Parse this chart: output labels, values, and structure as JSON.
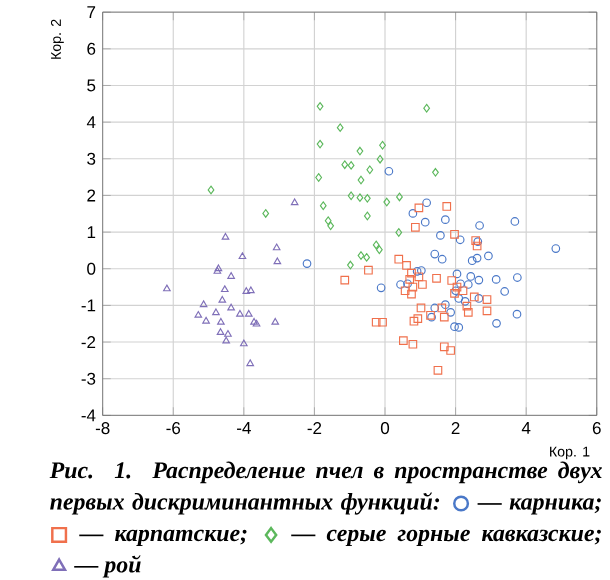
{
  "chart_data": {
    "type": "scatter",
    "xlabel": "Кор. 1",
    "ylabel": "Кор. 2",
    "xlim": [
      -8,
      6
    ],
    "ylim": [
      -4,
      7
    ],
    "xticks": [
      -8,
      -6,
      -4,
      -2,
      0,
      2,
      4,
      6
    ],
    "yticks": [
      -4,
      -3,
      -2,
      -1,
      0,
      1,
      2,
      3,
      4,
      5,
      6,
      7
    ],
    "grid": true,
    "legend": "bottom",
    "annotations": [
      "Рис. 1. Распределение пчел в пространстве двух первых дискриминантных функций:"
    ],
    "series": [
      {
        "name": "— карника;",
        "color": "#4a78c8",
        "marker": "circle",
        "x": [
          0.11,
          1.18,
          0.79,
          1.14,
          1.71,
          2.68,
          3.68,
          1.57,
          2.13,
          2.63,
          1.41,
          1.62,
          2.47,
          2.61,
          2.93,
          4.84,
          2.04,
          2.43,
          2.66,
          3.15,
          3.75,
          2.14,
          2.36,
          3.39,
          -0.11,
          0.44,
          1.03,
          0.91,
          0.64,
          2.0,
          2.09,
          2.27,
          2.66,
          1.71,
          1.41,
          1.86,
          1.32,
          3.74,
          3.16,
          1.97,
          2.09,
          -2.21
        ],
        "values": [
          2.66,
          1.8,
          1.51,
          1.27,
          1.34,
          1.18,
          1.29,
          0.91,
          0.79,
          0.74,
          0.4,
          0.26,
          0.22,
          0.29,
          0.35,
          0.55,
          -0.14,
          -0.21,
          -0.31,
          -0.29,
          -0.24,
          -0.41,
          -0.43,
          -0.62,
          -0.52,
          -0.43,
          -0.05,
          -0.07,
          -0.41,
          -0.6,
          -0.81,
          -0.89,
          -0.81,
          -0.98,
          -1.07,
          -1.19,
          -1.32,
          -1.24,
          -1.49,
          -1.58,
          -1.6,
          0.14
        ]
      },
      {
        "name": "— карпатские;",
        "color": "#f0704c",
        "marker": "square",
        "x": [
          0.96,
          1.75,
          0.86,
          1.97,
          2.57,
          2.61,
          0.39,
          -0.47,
          -1.14,
          0.61,
          0.75,
          0.96,
          0.7,
          1.46,
          1.06,
          0.79,
          0.57,
          0.75,
          1.89,
          2.04,
          1.97,
          2.21,
          2.53,
          2.89,
          2.89,
          1.02,
          1.61,
          1.68,
          2.32,
          2.36,
          1.29,
          0.93,
          0.82,
          -0.25,
          -0.07,
          0.52,
          0.79,
          1.68,
          1.86,
          1.5
        ],
        "values": [
          1.66,
          1.7,
          1.13,
          0.94,
          0.77,
          0.62,
          0.26,
          -0.04,
          -0.31,
          0.09,
          -0.12,
          -0.22,
          -0.29,
          -0.26,
          -0.43,
          -0.5,
          -0.6,
          -0.69,
          -0.32,
          -0.5,
          -0.67,
          -0.6,
          -0.77,
          -0.84,
          -1.15,
          -1.07,
          -1.07,
          -1.32,
          -1.02,
          -1.19,
          -1.27,
          -1.36,
          -1.43,
          -1.46,
          -1.46,
          -1.96,
          -2.06,
          -2.13,
          -2.23,
          -2.77
        ]
      },
      {
        "name": "— серые горные кавказские;",
        "color": "#5cb85c",
        "marker": "diamond",
        "x": [
          -4.93,
          -3.38,
          -1.84,
          -1.84,
          -1.88,
          -1.75,
          1.18,
          -1.27,
          -0.71,
          -0.07,
          -0.14,
          -1.14,
          -0.96,
          -0.43,
          1.43,
          -0.68,
          -0.96,
          -0.71,
          -0.5,
          0.41,
          0.05,
          -0.5,
          -1.61,
          -1.54,
          0.39,
          -0.25,
          -0.16,
          -0.68,
          -0.52,
          -0.98
        ],
        "values": [
          2.15,
          1.51,
          4.43,
          3.4,
          2.49,
          1.72,
          4.38,
          3.85,
          3.21,
          3.37,
          2.99,
          2.84,
          2.82,
          2.7,
          2.63,
          2.42,
          1.99,
          1.94,
          1.92,
          1.96,
          1.82,
          1.44,
          1.31,
          1.17,
          0.99,
          0.65,
          0.52,
          0.36,
          0.31,
          0.1
        ]
      },
      {
        "name": "— рой",
        "color": "#7f6fb8",
        "marker": "triangle",
        "x": [
          -4.52,
          -4.04,
          -3.07,
          -3.05,
          -4.72,
          -4.75,
          -4.36,
          -6.18,
          -4.54,
          -3.93,
          -3.8,
          -5.14,
          -4.61,
          -4.36,
          -4.79,
          -5.29,
          -5.07,
          -4.11,
          -3.86,
          -3.71,
          -3.64,
          -3.11,
          -4.65,
          -4.66,
          -4.45,
          -4.5,
          -4.0,
          -3.82,
          -2.56
        ],
        "values": [
          0.86,
          0.33,
          0.57,
          0.19,
          0.0,
          -0.07,
          -0.21,
          -0.55,
          -0.57,
          -0.62,
          -0.6,
          -0.98,
          -0.86,
          -1.07,
          -1.2,
          -1.27,
          -1.43,
          -1.24,
          -1.24,
          -1.46,
          -1.51,
          -1.46,
          -1.46,
          -1.74,
          -1.79,
          -1.97,
          -2.05,
          -2.59,
          1.8
        ]
      }
    ]
  }
}
